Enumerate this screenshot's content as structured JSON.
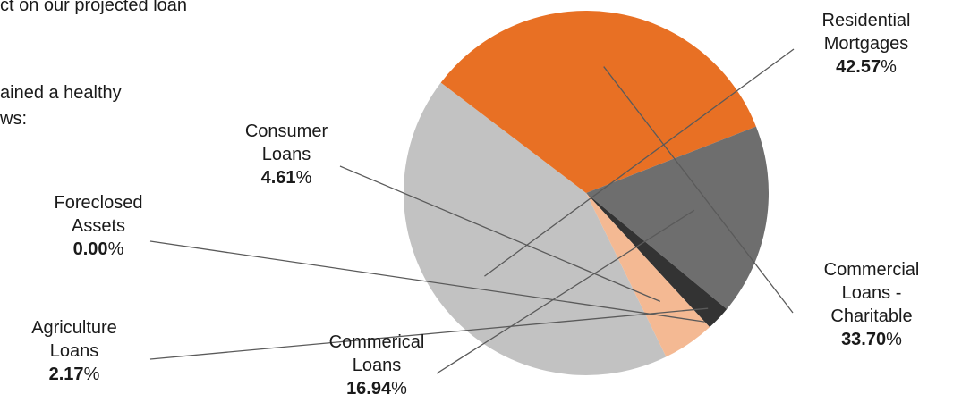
{
  "intro_fragments": [
    "ct on our projected loan",
    "ained a healthy",
    "ws:"
  ],
  "colors": {
    "residential": "#c2c2c2",
    "charitable": "#e87024",
    "commercial": "#6e6e6e",
    "agriculture": "#333333",
    "foreclosed": "#222222",
    "consumer": "#f4b993",
    "leader": "#5a5a5a"
  },
  "chart_data": {
    "type": "pie",
    "slices": [
      {
        "key": "residential",
        "label_lines": [
          "Residential",
          "Mortgages"
        ],
        "value": 42.57,
        "value_text": "42.57",
        "color": "#c2c2c2"
      },
      {
        "key": "charitable",
        "label_lines": [
          "Commercial",
          "Loans -",
          "Charitable"
        ],
        "value": 33.7,
        "value_text": "33.70",
        "color": "#e87024"
      },
      {
        "key": "commercial",
        "label_lines": [
          "Commerical",
          "Loans"
        ],
        "value": 16.94,
        "value_text": "16.94",
        "color": "#6e6e6e"
      },
      {
        "key": "agriculture",
        "label_lines": [
          "Agriculture",
          "Loans"
        ],
        "value": 2.17,
        "value_text": "2.17",
        "color": "#333333"
      },
      {
        "key": "foreclosed",
        "label_lines": [
          "Foreclosed",
          "Assets"
        ],
        "value": 0.0,
        "value_text": "0.00",
        "color": "#222222"
      },
      {
        "key": "consumer",
        "label_lines": [
          "Consumer",
          "Loans"
        ],
        "value": 4.61,
        "value_text": "4.61",
        "color": "#f4b993"
      }
    ],
    "value_suffix": "%"
  }
}
